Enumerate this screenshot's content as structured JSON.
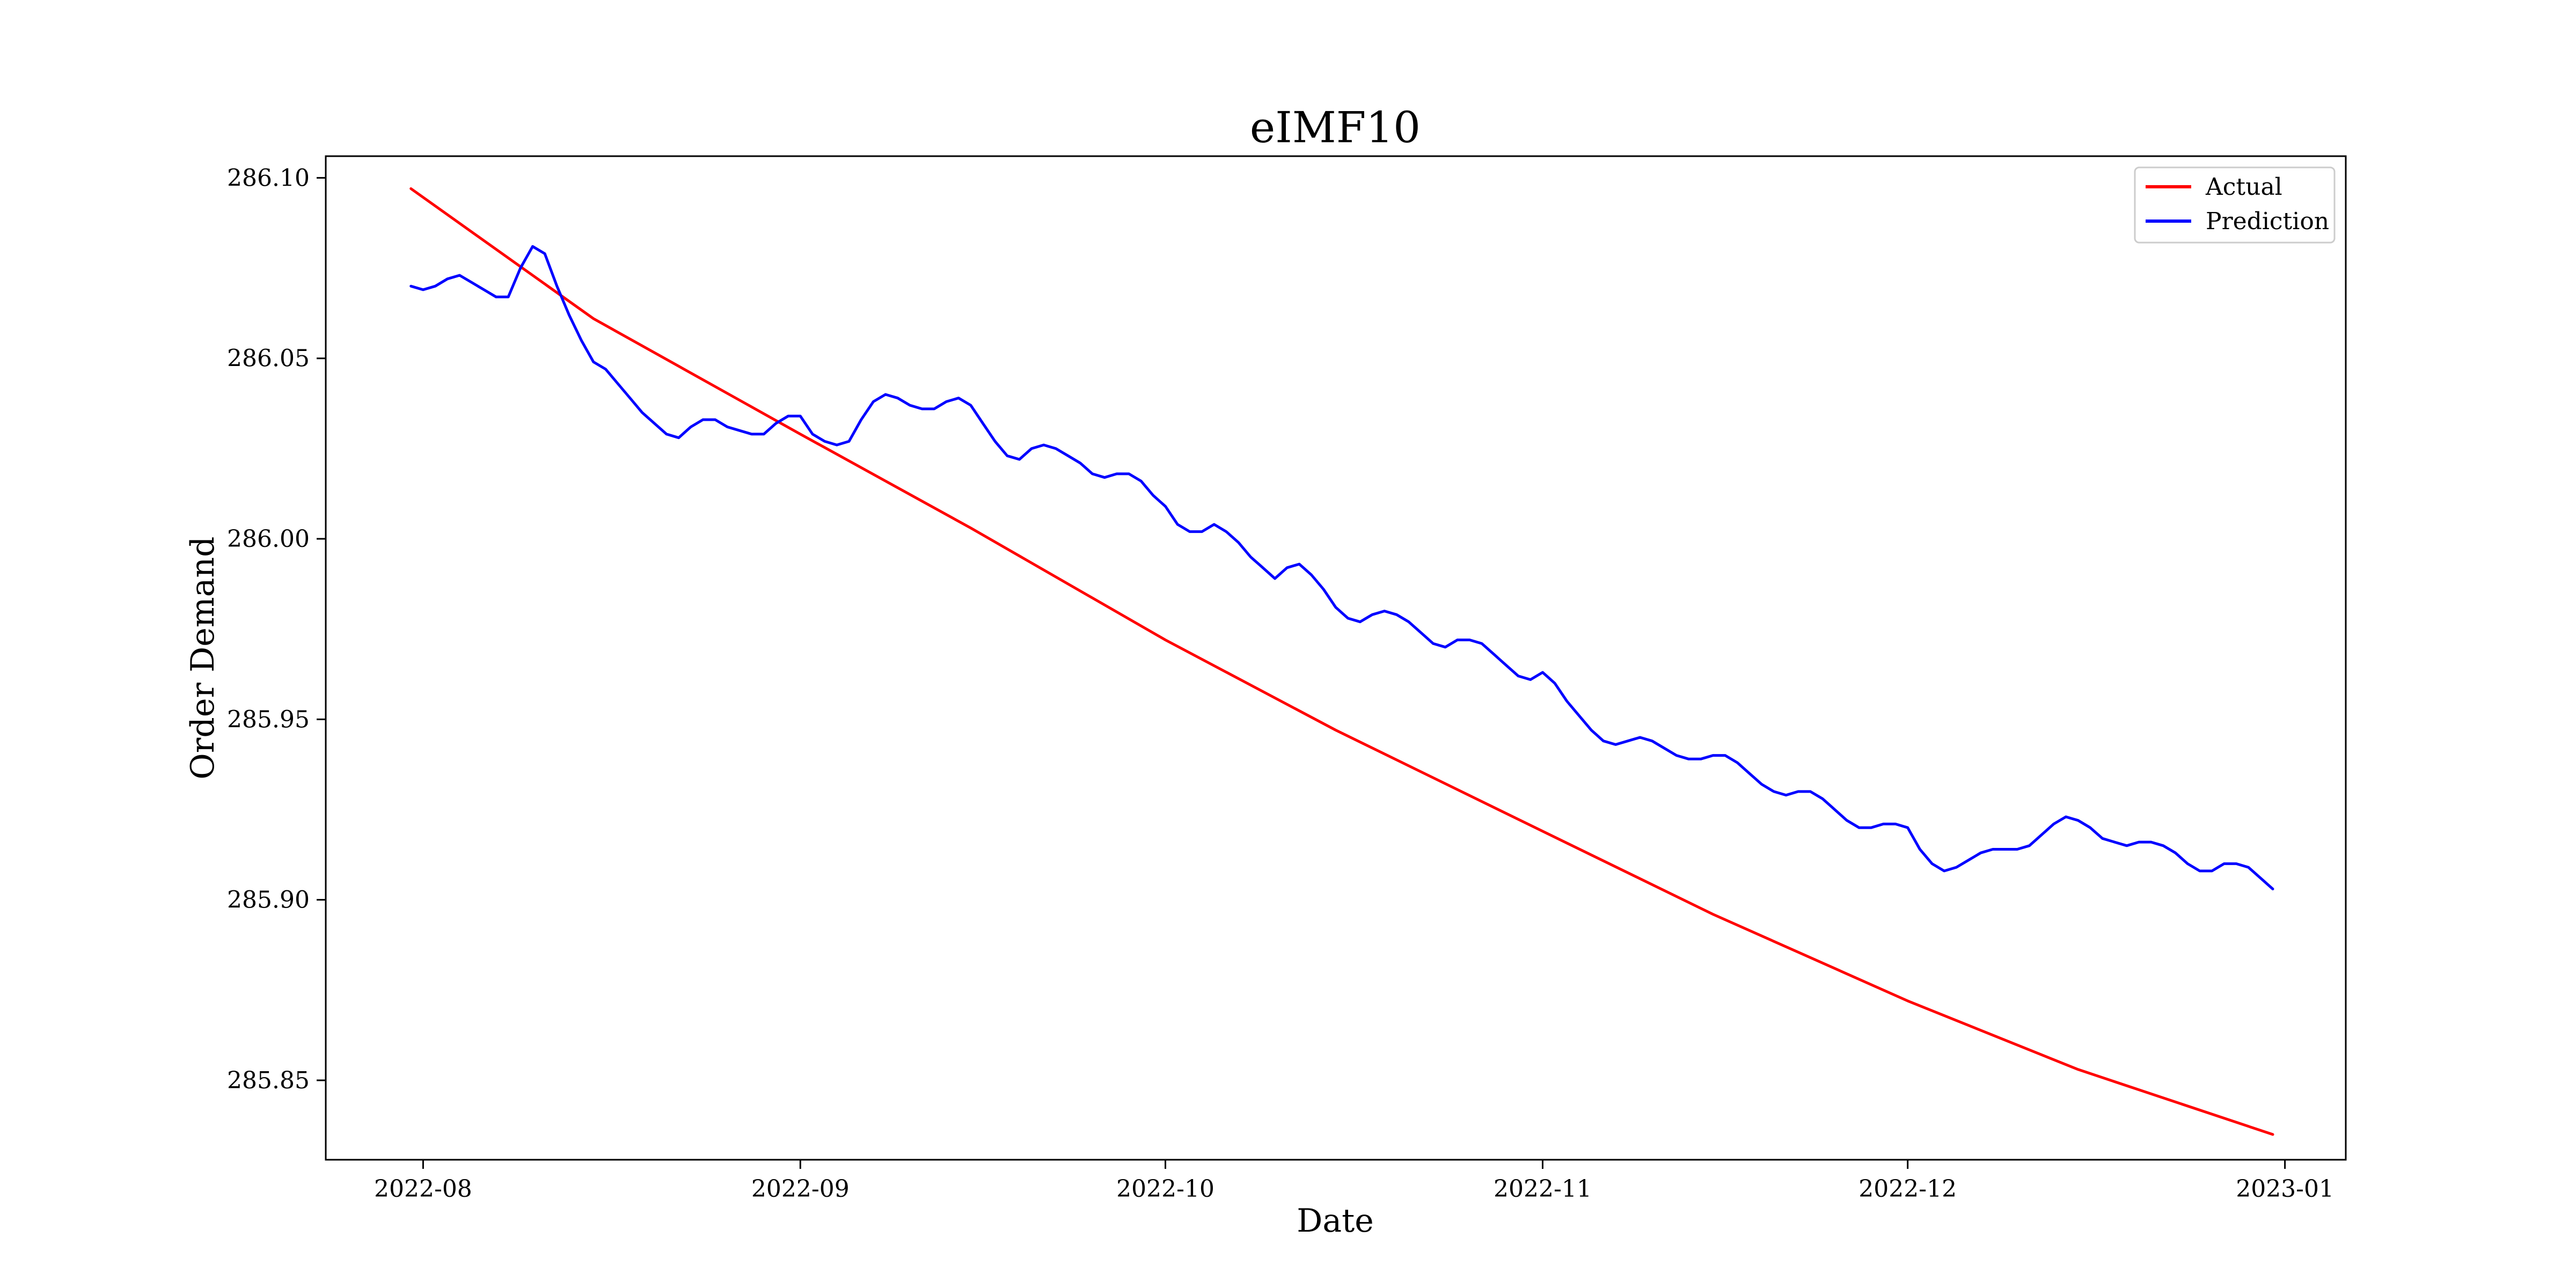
{
  "chart_data": {
    "type": "line",
    "title": "eIMF10",
    "xlabel": "Date",
    "ylabel": "Order Demand",
    "xlim": [
      "2022-07-24",
      "2023-01-06"
    ],
    "ylim": [
      285.828,
      286.106
    ],
    "x_ticks": [
      "2022-08-01",
      "2022-09-01",
      "2022-10-01",
      "2022-11-01",
      "2022-12-01",
      "2023-01-01"
    ],
    "x_tick_labels": [
      "2022-08",
      "2022-09",
      "2022-10",
      "2022-11",
      "2022-12",
      "2023-01"
    ],
    "y_ticks": [
      285.85,
      285.9,
      285.95,
      286.0,
      286.05,
      286.1
    ],
    "y_tick_labels": [
      "285.85",
      "285.90",
      "285.95",
      "286.00",
      "286.05",
      "286.10"
    ],
    "grid": false,
    "legend_position": "top-right",
    "series": [
      {
        "name": "Actual",
        "color": "#ff0000",
        "points": [
          [
            "2022-07-31",
            286.097
          ],
          [
            "2022-08-15",
            286.061
          ],
          [
            "2022-09-01",
            286.029
          ],
          [
            "2022-09-15",
            286.003
          ],
          [
            "2022-10-01",
            285.972
          ],
          [
            "2022-10-15",
            285.947
          ],
          [
            "2022-11-01",
            285.919
          ],
          [
            "2022-11-15",
            285.896
          ],
          [
            "2022-12-01",
            285.872
          ],
          [
            "2022-12-15",
            285.853
          ],
          [
            "2022-12-31",
            285.835
          ]
        ]
      },
      {
        "name": "Prediction",
        "color": "#0000ff",
        "points": [
          [
            "2022-07-31",
            286.07
          ],
          [
            "2022-08-01",
            286.069
          ],
          [
            "2022-08-02",
            286.07
          ],
          [
            "2022-08-03",
            286.072
          ],
          [
            "2022-08-04",
            286.073
          ],
          [
            "2022-08-05",
            286.071
          ],
          [
            "2022-08-06",
            286.069
          ],
          [
            "2022-08-07",
            286.067
          ],
          [
            "2022-08-08",
            286.067
          ],
          [
            "2022-08-09",
            286.075
          ],
          [
            "2022-08-10",
            286.081
          ],
          [
            "2022-08-11",
            286.079
          ],
          [
            "2022-08-12",
            286.07
          ],
          [
            "2022-08-13",
            286.062
          ],
          [
            "2022-08-14",
            286.055
          ],
          [
            "2022-08-15",
            286.049
          ],
          [
            "2022-08-16",
            286.047
          ],
          [
            "2022-08-17",
            286.043
          ],
          [
            "2022-08-18",
            286.039
          ],
          [
            "2022-08-19",
            286.035
          ],
          [
            "2022-08-20",
            286.032
          ],
          [
            "2022-08-21",
            286.029
          ],
          [
            "2022-08-22",
            286.028
          ],
          [
            "2022-08-23",
            286.031
          ],
          [
            "2022-08-24",
            286.033
          ],
          [
            "2022-08-25",
            286.033
          ],
          [
            "2022-08-26",
            286.031
          ],
          [
            "2022-08-27",
            286.03
          ],
          [
            "2022-08-28",
            286.029
          ],
          [
            "2022-08-29",
            286.029
          ],
          [
            "2022-08-30",
            286.032
          ],
          [
            "2022-08-31",
            286.034
          ],
          [
            "2022-09-01",
            286.034
          ],
          [
            "2022-09-02",
            286.029
          ],
          [
            "2022-09-03",
            286.027
          ],
          [
            "2022-09-04",
            286.026
          ],
          [
            "2022-09-05",
            286.027
          ],
          [
            "2022-09-06",
            286.033
          ],
          [
            "2022-09-07",
            286.038
          ],
          [
            "2022-09-08",
            286.04
          ],
          [
            "2022-09-09",
            286.039
          ],
          [
            "2022-09-10",
            286.037
          ],
          [
            "2022-09-11",
            286.036
          ],
          [
            "2022-09-12",
            286.036
          ],
          [
            "2022-09-13",
            286.038
          ],
          [
            "2022-09-14",
            286.039
          ],
          [
            "2022-09-15",
            286.037
          ],
          [
            "2022-09-16",
            286.032
          ],
          [
            "2022-09-17",
            286.027
          ],
          [
            "2022-09-18",
            286.023
          ],
          [
            "2022-09-19",
            286.022
          ],
          [
            "2022-09-20",
            286.025
          ],
          [
            "2022-09-21",
            286.026
          ],
          [
            "2022-09-22",
            286.025
          ],
          [
            "2022-09-23",
            286.023
          ],
          [
            "2022-09-24",
            286.021
          ],
          [
            "2022-09-25",
            286.018
          ],
          [
            "2022-09-26",
            286.017
          ],
          [
            "2022-09-27",
            286.018
          ],
          [
            "2022-09-28",
            286.018
          ],
          [
            "2022-09-29",
            286.016
          ],
          [
            "2022-09-30",
            286.012
          ],
          [
            "2022-10-01",
            286.009
          ],
          [
            "2022-10-02",
            286.004
          ],
          [
            "2022-10-03",
            286.002
          ],
          [
            "2022-10-04",
            286.002
          ],
          [
            "2022-10-05",
            286.004
          ],
          [
            "2022-10-06",
            286.002
          ],
          [
            "2022-10-07",
            285.999
          ],
          [
            "2022-10-08",
            285.995
          ],
          [
            "2022-10-09",
            285.992
          ],
          [
            "2022-10-10",
            285.989
          ],
          [
            "2022-10-11",
            285.992
          ],
          [
            "2022-10-12",
            285.993
          ],
          [
            "2022-10-13",
            285.99
          ],
          [
            "2022-10-14",
            285.986
          ],
          [
            "2022-10-15",
            285.981
          ],
          [
            "2022-10-16",
            285.978
          ],
          [
            "2022-10-17",
            285.977
          ],
          [
            "2022-10-18",
            285.979
          ],
          [
            "2022-10-19",
            285.98
          ],
          [
            "2022-10-20",
            285.979
          ],
          [
            "2022-10-21",
            285.977
          ],
          [
            "2022-10-22",
            285.974
          ],
          [
            "2022-10-23",
            285.971
          ],
          [
            "2022-10-24",
            285.97
          ],
          [
            "2022-10-25",
            285.972
          ],
          [
            "2022-10-26",
            285.972
          ],
          [
            "2022-10-27",
            285.971
          ],
          [
            "2022-10-28",
            285.968
          ],
          [
            "2022-10-29",
            285.965
          ],
          [
            "2022-10-30",
            285.962
          ],
          [
            "2022-10-31",
            285.961
          ],
          [
            "2022-11-01",
            285.963
          ],
          [
            "2022-11-02",
            285.96
          ],
          [
            "2022-11-03",
            285.955
          ],
          [
            "2022-11-04",
            285.951
          ],
          [
            "2022-11-05",
            285.947
          ],
          [
            "2022-11-06",
            285.944
          ],
          [
            "2022-11-07",
            285.943
          ],
          [
            "2022-11-08",
            285.944
          ],
          [
            "2022-11-09",
            285.945
          ],
          [
            "2022-11-10",
            285.944
          ],
          [
            "2022-11-11",
            285.942
          ],
          [
            "2022-11-12",
            285.94
          ],
          [
            "2022-11-13",
            285.939
          ],
          [
            "2022-11-14",
            285.939
          ],
          [
            "2022-11-15",
            285.94
          ],
          [
            "2022-11-16",
            285.94
          ],
          [
            "2022-11-17",
            285.938
          ],
          [
            "2022-11-18",
            285.935
          ],
          [
            "2022-11-19",
            285.932
          ],
          [
            "2022-11-20",
            285.93
          ],
          [
            "2022-11-21",
            285.929
          ],
          [
            "2022-11-22",
            285.93
          ],
          [
            "2022-11-23",
            285.93
          ],
          [
            "2022-11-24",
            285.928
          ],
          [
            "2022-11-25",
            285.925
          ],
          [
            "2022-11-26",
            285.922
          ],
          [
            "2022-11-27",
            285.92
          ],
          [
            "2022-11-28",
            285.92
          ],
          [
            "2022-11-29",
            285.921
          ],
          [
            "2022-11-30",
            285.921
          ],
          [
            "2022-12-01",
            285.92
          ],
          [
            "2022-12-02",
            285.914
          ],
          [
            "2022-12-03",
            285.91
          ],
          [
            "2022-12-04",
            285.908
          ],
          [
            "2022-12-05",
            285.909
          ],
          [
            "2022-12-06",
            285.911
          ],
          [
            "2022-12-07",
            285.913
          ],
          [
            "2022-12-08",
            285.914
          ],
          [
            "2022-12-09",
            285.914
          ],
          [
            "2022-12-10",
            285.914
          ],
          [
            "2022-12-11",
            285.915
          ],
          [
            "2022-12-12",
            285.918
          ],
          [
            "2022-12-13",
            285.921
          ],
          [
            "2022-12-14",
            285.923
          ],
          [
            "2022-12-15",
            285.922
          ],
          [
            "2022-12-16",
            285.92
          ],
          [
            "2022-12-17",
            285.917
          ],
          [
            "2022-12-18",
            285.916
          ],
          [
            "2022-12-19",
            285.915
          ],
          [
            "2022-12-20",
            285.916
          ],
          [
            "2022-12-21",
            285.916
          ],
          [
            "2022-12-22",
            285.915
          ],
          [
            "2022-12-23",
            285.913
          ],
          [
            "2022-12-24",
            285.91
          ],
          [
            "2022-12-25",
            285.908
          ],
          [
            "2022-12-26",
            285.908
          ],
          [
            "2022-12-27",
            285.91
          ],
          [
            "2022-12-28",
            285.91
          ],
          [
            "2022-12-29",
            285.909
          ],
          [
            "2022-12-30",
            285.906
          ],
          [
            "2022-12-31",
            285.903
          ]
        ]
      }
    ]
  }
}
